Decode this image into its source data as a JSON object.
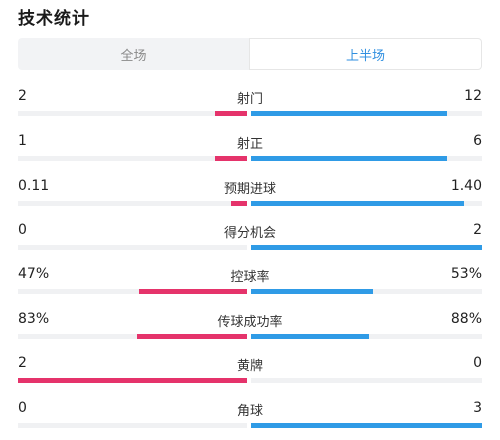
{
  "title": "技术统计",
  "tabs": [
    {
      "label": "全场",
      "active": false
    },
    {
      "label": "上半场",
      "active": true
    }
  ],
  "colors": {
    "home": "#e5336b",
    "away": "#2f9be6",
    "active_tab": "#2f8fe0"
  },
  "stats": [
    {
      "label": "射门",
      "home": "2",
      "away": "12",
      "home_frac": 0.14,
      "away_frac": 0.85
    },
    {
      "label": "射正",
      "home": "1",
      "away": "6",
      "home_frac": 0.14,
      "away_frac": 0.85
    },
    {
      "label": "预期进球",
      "home": "0.11",
      "away": "1.40",
      "home_frac": 0.07,
      "away_frac": 0.92
    },
    {
      "label": "得分机会",
      "home": "0",
      "away": "2",
      "home_frac": 0.0,
      "away_frac": 1.0
    },
    {
      "label": "控球率",
      "home": "47%",
      "away": "53%",
      "home_frac": 0.47,
      "away_frac": 0.53
    },
    {
      "label": "传球成功率",
      "home": "83%",
      "away": "88%",
      "home_frac": 0.48,
      "away_frac": 0.51
    },
    {
      "label": "黄牌",
      "home": "2",
      "away": "0",
      "home_frac": 1.0,
      "away_frac": 0.0
    },
    {
      "label": "角球",
      "home": "0",
      "away": "3",
      "home_frac": 0.0,
      "away_frac": 1.0
    }
  ]
}
